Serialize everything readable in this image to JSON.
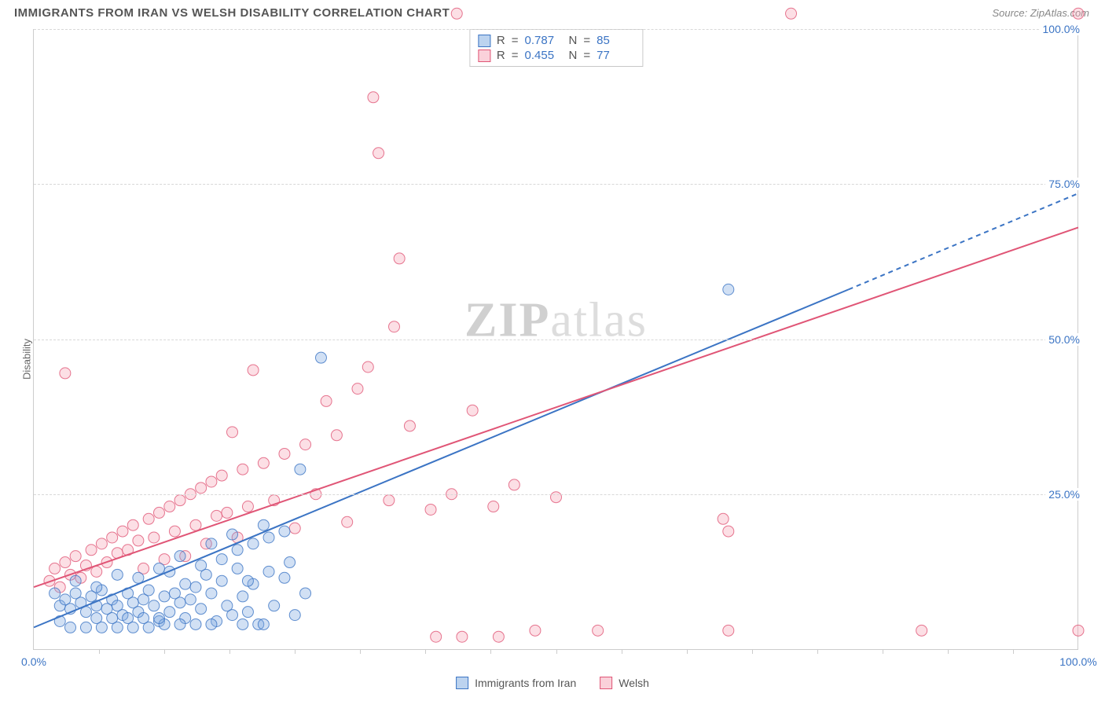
{
  "title": "IMMIGRANTS FROM IRAN VS WELSH DISABILITY CORRELATION CHART",
  "source": "Source: ZipAtlas.com",
  "y_axis_label": "Disability",
  "watermark_a": "ZIP",
  "watermark_b": "atlas",
  "chart": {
    "type": "scatter",
    "background_color": "#ffffff",
    "grid_color": "#d8d8d8",
    "axis_color": "#cccccc",
    "tick_label_color": "#3b74c4",
    "xlim": [
      0,
      100
    ],
    "ylim": [
      0,
      100
    ],
    "x_ticks": [
      0,
      100
    ],
    "x_tick_labels": [
      "0.0%",
      "100.0%"
    ],
    "x_minor_ticks": [
      6.25,
      12.5,
      18.75,
      25,
      31.25,
      37.5,
      43.75,
      50,
      56.25,
      62.5,
      68.75,
      75,
      81.25,
      87.5,
      93.75
    ],
    "y_ticks": [
      25,
      50,
      75,
      100
    ],
    "y_tick_labels": [
      "25.0%",
      "50.0%",
      "75.0%",
      "100.0%"
    ],
    "marker_radius": 7,
    "marker_opacity": 0.35,
    "line_width": 2,
    "series": [
      {
        "name": "Immigrants from Iran",
        "fill_color": "#7aa7e0",
        "stroke_color": "#3b74c4",
        "R": "0.787",
        "N": "85",
        "trend_solid": [
          [
            0,
            3.5
          ],
          [
            78,
            58
          ]
        ],
        "trend_dash": [
          [
            78,
            58
          ],
          [
            100,
            73.5
          ]
        ],
        "points": [
          [
            2.0,
            9.0
          ],
          [
            2.5,
            7.0
          ],
          [
            3.0,
            8.0
          ],
          [
            3.5,
            6.5
          ],
          [
            4.0,
            9.0
          ],
          [
            4.5,
            7.5
          ],
          [
            5.0,
            6.0
          ],
          [
            5.5,
            8.5
          ],
          [
            6.0,
            7.0
          ],
          [
            6.5,
            9.5
          ],
          [
            7.0,
            6.5
          ],
          [
            7.5,
            8.0
          ],
          [
            8.0,
            7.0
          ],
          [
            8.5,
            5.5
          ],
          [
            9.0,
            9.0
          ],
          [
            9.5,
            7.5
          ],
          [
            10.0,
            6.0
          ],
          [
            10.5,
            8.0
          ],
          [
            11.0,
            9.5
          ],
          [
            11.5,
            7.0
          ],
          [
            12.0,
            4.5
          ],
          [
            12.5,
            8.5
          ],
          [
            13.0,
            6.0
          ],
          [
            13.5,
            9.0
          ],
          [
            14.0,
            7.5
          ],
          [
            14.5,
            5.0
          ],
          [
            15.0,
            8.0
          ],
          [
            15.5,
            10.0
          ],
          [
            16.0,
            6.5
          ],
          [
            16.5,
            12.0
          ],
          [
            17.0,
            9.0
          ],
          [
            17.5,
            4.5
          ],
          [
            18.0,
            11.0
          ],
          [
            18.5,
            7.0
          ],
          [
            19.0,
            5.5
          ],
          [
            19.5,
            13.0
          ],
          [
            20.0,
            8.5
          ],
          [
            20.5,
            6.0
          ],
          [
            21.0,
            10.5
          ],
          [
            21.5,
            4.0
          ],
          [
            22.0,
            20.0
          ],
          [
            23.0,
            7.0
          ],
          [
            24.0,
            11.5
          ],
          [
            25.0,
            5.5
          ],
          [
            25.5,
            29.0
          ],
          [
            26.0,
            9.0
          ],
          [
            17.0,
            17.0
          ],
          [
            19.0,
            18.5
          ],
          [
            14.0,
            15.0
          ],
          [
            12.0,
            13.0
          ],
          [
            10.0,
            11.5
          ],
          [
            8.0,
            12.0
          ],
          [
            6.0,
            10.0
          ],
          [
            4.0,
            11.0
          ],
          [
            2.5,
            4.5
          ],
          [
            3.5,
            3.5
          ],
          [
            5.0,
            3.5
          ],
          [
            6.5,
            3.5
          ],
          [
            8.0,
            3.5
          ],
          [
            9.5,
            3.5
          ],
          [
            11.0,
            3.5
          ],
          [
            12.5,
            4.0
          ],
          [
            14.0,
            4.0
          ],
          [
            15.5,
            4.0
          ],
          [
            17.0,
            4.0
          ],
          [
            20.0,
            4.0
          ],
          [
            22.0,
            4.0
          ],
          [
            14.5,
            10.5
          ],
          [
            16.0,
            13.5
          ],
          [
            18.0,
            14.5
          ],
          [
            19.5,
            16.0
          ],
          [
            21.0,
            17.0
          ],
          [
            22.5,
            18.0
          ],
          [
            24.0,
            19.0
          ],
          [
            13.0,
            12.5
          ],
          [
            27.5,
            47.0
          ],
          [
            66.5,
            58.0
          ],
          [
            6.0,
            5.0
          ],
          [
            7.5,
            5.0
          ],
          [
            9.0,
            5.0
          ],
          [
            10.5,
            5.0
          ],
          [
            12.0,
            5.0
          ],
          [
            20.5,
            11.0
          ],
          [
            22.5,
            12.5
          ],
          [
            24.5,
            14.0
          ]
        ]
      },
      {
        "name": "Welsh",
        "fill_color": "#f5a3b5",
        "stroke_color": "#e05576",
        "R": "0.455",
        "N": "77",
        "trend_solid": [
          [
            0,
            10
          ],
          [
            100,
            68
          ]
        ],
        "trend_dash": null,
        "points": [
          [
            1.5,
            11.0
          ],
          [
            2.0,
            13.0
          ],
          [
            2.5,
            10.0
          ],
          [
            3.0,
            14.0
          ],
          [
            3.5,
            12.0
          ],
          [
            4.0,
            15.0
          ],
          [
            4.5,
            11.5
          ],
          [
            5.0,
            13.5
          ],
          [
            5.5,
            16.0
          ],
          [
            6.0,
            12.5
          ],
          [
            6.5,
            17.0
          ],
          [
            7.0,
            14.0
          ],
          [
            7.5,
            18.0
          ],
          [
            8.0,
            15.5
          ],
          [
            8.5,
            19.0
          ],
          [
            9.0,
            16.0
          ],
          [
            9.5,
            20.0
          ],
          [
            10.0,
            17.5
          ],
          [
            10.5,
            13.0
          ],
          [
            11.0,
            21.0
          ],
          [
            11.5,
            18.0
          ],
          [
            12.0,
            22.0
          ],
          [
            12.5,
            14.5
          ],
          [
            13.0,
            23.0
          ],
          [
            13.5,
            19.0
          ],
          [
            14.0,
            24.0
          ],
          [
            14.5,
            15.0
          ],
          [
            15.0,
            25.0
          ],
          [
            15.5,
            20.0
          ],
          [
            16.0,
            26.0
          ],
          [
            16.5,
            17.0
          ],
          [
            17.0,
            27.0
          ],
          [
            17.5,
            21.5
          ],
          [
            18.0,
            28.0
          ],
          [
            18.5,
            22.0
          ],
          [
            19.0,
            35.0
          ],
          [
            19.5,
            18.0
          ],
          [
            20.0,
            29.0
          ],
          [
            20.5,
            23.0
          ],
          [
            21.0,
            45.0
          ],
          [
            22.0,
            30.0
          ],
          [
            23.0,
            24.0
          ],
          [
            24.0,
            31.5
          ],
          [
            25.0,
            19.5
          ],
          [
            26.0,
            33.0
          ],
          [
            27.0,
            25.0
          ],
          [
            28.0,
            40.0
          ],
          [
            29.0,
            34.5
          ],
          [
            30.0,
            20.5
          ],
          [
            31.0,
            42.0
          ],
          [
            32.0,
            45.5
          ],
          [
            32.5,
            89.0
          ],
          [
            33.0,
            80.0
          ],
          [
            34.0,
            24.0
          ],
          [
            34.5,
            52.0
          ],
          [
            35.0,
            63.0
          ],
          [
            36.0,
            36.0
          ],
          [
            38.0,
            22.5
          ],
          [
            38.5,
            2.0
          ],
          [
            40.0,
            25.0
          ],
          [
            40.5,
            102.5
          ],
          [
            41.0,
            2.0
          ],
          [
            42.0,
            38.5
          ],
          [
            44.0,
            23.0
          ],
          [
            44.5,
            2.0
          ],
          [
            46.0,
            26.5
          ],
          [
            48.0,
            3.0
          ],
          [
            50.0,
            24.5
          ],
          [
            54.0,
            3.0
          ],
          [
            66.5,
            3.0
          ],
          [
            66.0,
            21.0
          ],
          [
            66.5,
            19.0
          ],
          [
            72.5,
            102.5
          ],
          [
            85.0,
            3.0
          ],
          [
            100.0,
            3.0
          ],
          [
            100.0,
            102.5
          ],
          [
            3.0,
            44.5
          ]
        ]
      }
    ],
    "legend_labels": [
      "Immigrants from Iran",
      "Welsh"
    ],
    "R_label": "R",
    "N_label": "N",
    "eq": "="
  }
}
